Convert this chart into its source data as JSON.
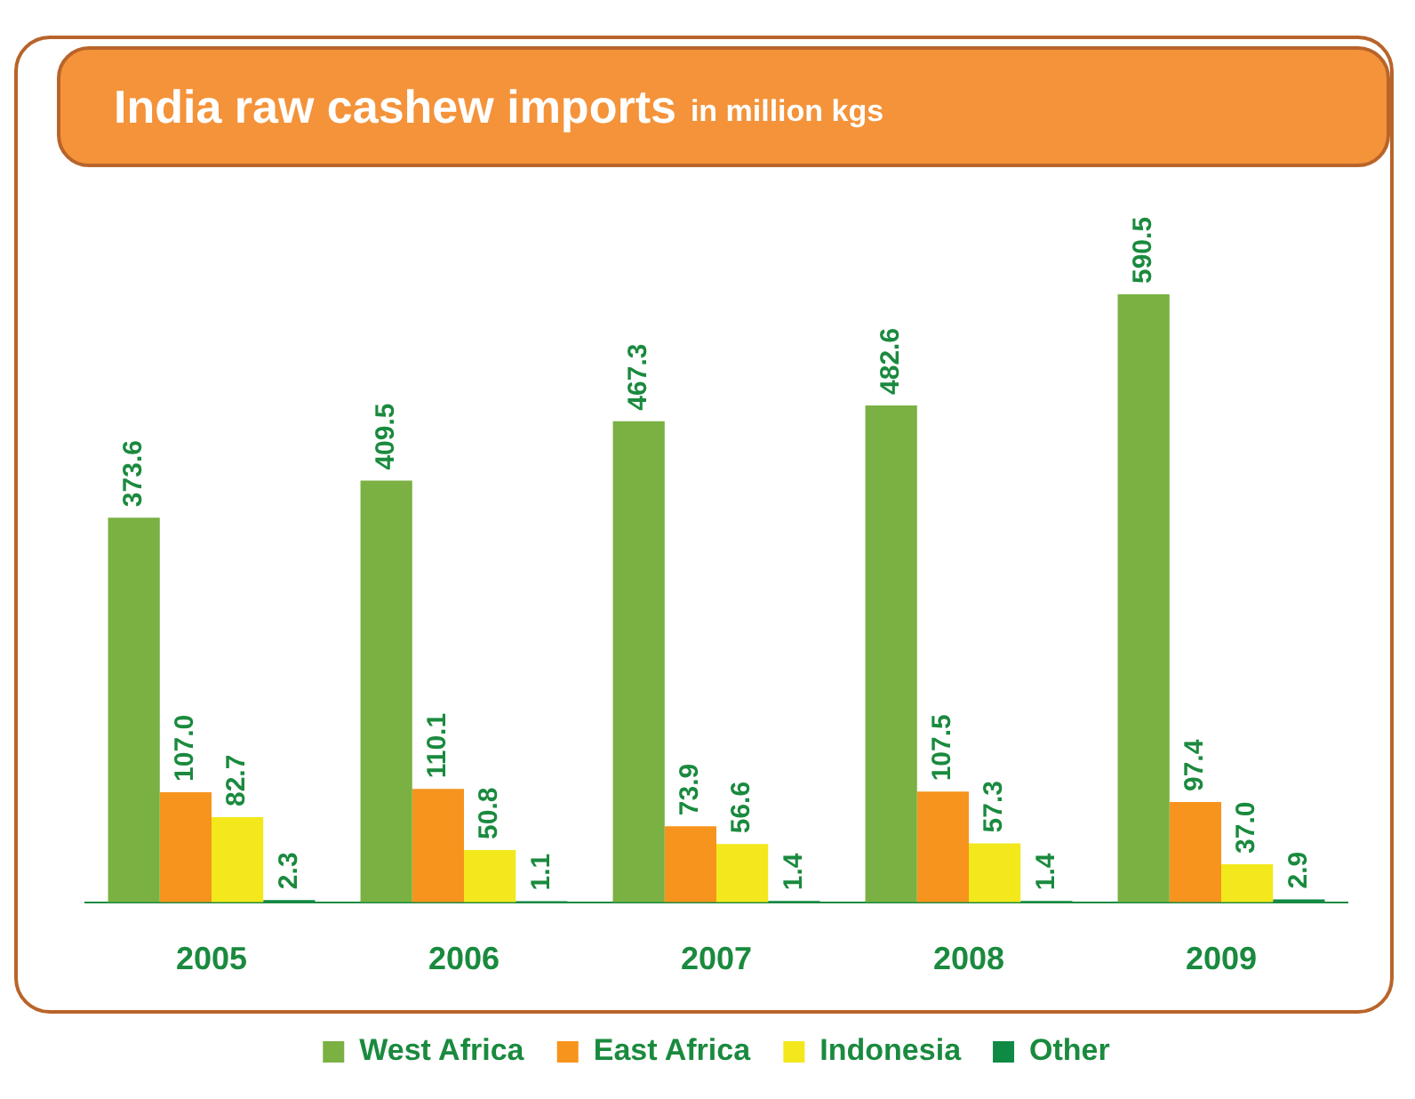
{
  "chart_data": {
    "type": "bar",
    "title": "India raw cashew imports",
    "subtitle": "in million kgs",
    "categories": [
      "2005",
      "2006",
      "2007",
      "2008",
      "2009"
    ],
    "series": [
      {
        "name": "West Africa",
        "color": "#7ab142",
        "values": [
          373.6,
          409.5,
          467.3,
          482.6,
          590.5
        ],
        "value_labels": [
          "373.6",
          "409.5",
          "467.3",
          "482.6",
          "590.5"
        ]
      },
      {
        "name": "East Africa",
        "color": "#f7941d",
        "values": [
          107.0,
          110.1,
          73.9,
          107.5,
          97.4
        ],
        "value_labels": [
          "107.0",
          "110.1",
          "73.9",
          "107.5",
          "97.4"
        ]
      },
      {
        "name": "Indonesia",
        "color": "#f2e81c",
        "values": [
          82.7,
          50.8,
          56.6,
          57.3,
          37.0
        ],
        "value_labels": [
          "82.7",
          "50.8",
          "56.6",
          "57.3",
          "37.0"
        ]
      },
      {
        "name": "Other",
        "color": "#0f8a45",
        "values": [
          2.3,
          1.1,
          1.4,
          1.4,
          2.9
        ],
        "value_labels": [
          "2.3",
          "1.1",
          "1.4",
          "1.4",
          "2.9"
        ]
      }
    ],
    "legend": "bottom",
    "grid": false
  }
}
